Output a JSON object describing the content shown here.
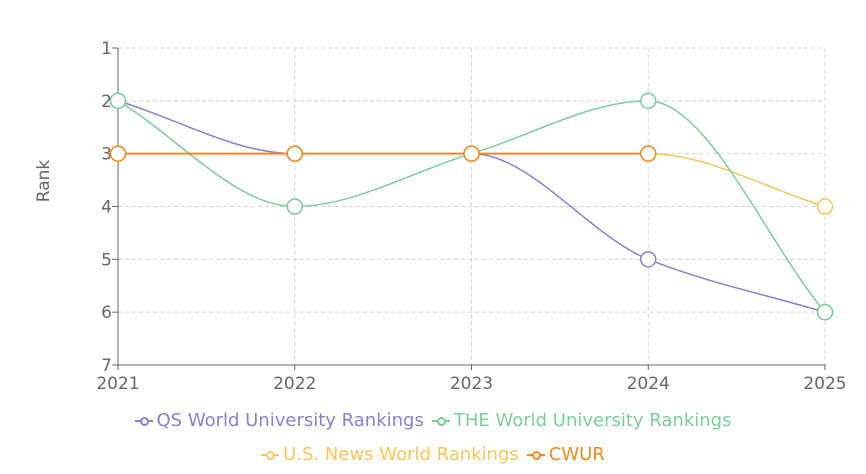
{
  "chart_data": {
    "type": "line",
    "x": [
      "2021",
      "2022",
      "2023",
      "2024",
      "2025"
    ],
    "ylabel": "Rank",
    "ylim": [
      1,
      7
    ],
    "y_inverted": true,
    "y_ticks": [
      "1",
      "2",
      "3",
      "4",
      "5",
      "6",
      "7"
    ],
    "grid": true,
    "legend_position": "bottom",
    "series": [
      {
        "name": "QS World University Rankings",
        "color": "#8a7fd1",
        "values": [
          2,
          3,
          3,
          5,
          6
        ]
      },
      {
        "name": "THE World University Rankings",
        "color": "#7ecc9c",
        "values": [
          2,
          4,
          3,
          2,
          6
        ]
      },
      {
        "name": "U.S. News World Rankings",
        "color": "#f9c65a",
        "values": [
          3,
          3,
          3,
          3,
          4
        ]
      },
      {
        "name": "CWUR",
        "color": "#f08a1c",
        "values": [
          3,
          3,
          3,
          3,
          null
        ]
      }
    ]
  }
}
